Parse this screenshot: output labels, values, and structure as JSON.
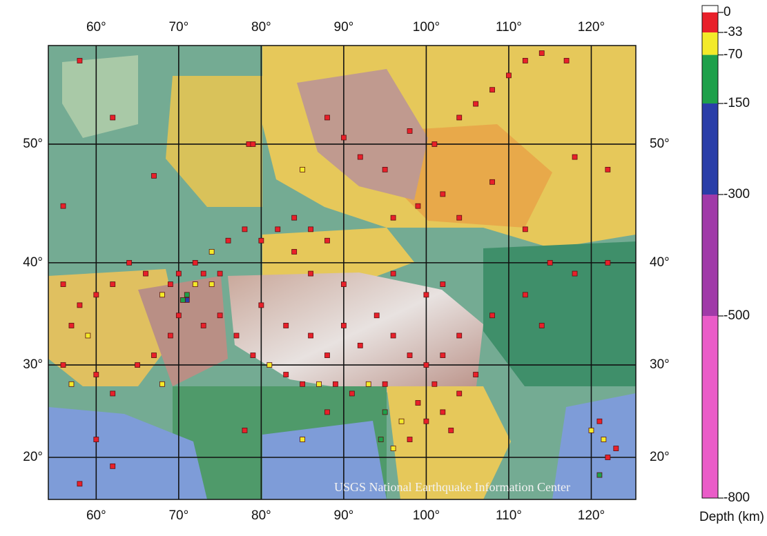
{
  "map_data": {
    "type": "scatter",
    "projection": "mercator",
    "xlim": [
      54.2,
      125.4
    ],
    "ylim": [
      15.2,
      57
    ],
    "xticks": [
      {
        "value": 60,
        "label": "60°"
      },
      {
        "value": 70,
        "label": "70°"
      },
      {
        "value": 80,
        "label": "80°"
      },
      {
        "value": 90,
        "label": "90°"
      },
      {
        "value": 100,
        "label": "100°"
      },
      {
        "value": 110,
        "label": "110°"
      },
      {
        "value": 120,
        "label": "120°"
      }
    ],
    "yticks": [
      {
        "value": 20,
        "label": "20°"
      },
      {
        "value": 30,
        "label": "30°"
      },
      {
        "value": 40,
        "label": "40°"
      },
      {
        "value": 50,
        "label": "50°"
      }
    ],
    "grid": true,
    "watermark": "USGS National Earthquake Information Center",
    "points": [
      [
        58,
        56,
        -10
      ],
      [
        78.5,
        50,
        -10
      ],
      [
        79,
        50,
        -10
      ],
      [
        67,
        47.5,
        -10
      ],
      [
        56,
        45,
        -10
      ],
      [
        62,
        52,
        -10
      ],
      [
        88,
        52,
        -10
      ],
      [
        90,
        50.5,
        -10
      ],
      [
        92,
        49,
        -10
      ],
      [
        95,
        48,
        -10
      ],
      [
        98,
        51,
        -10
      ],
      [
        101,
        50,
        -10
      ],
      [
        104,
        52,
        -10
      ],
      [
        106,
        53,
        -20
      ],
      [
        108,
        54,
        -10
      ],
      [
        110,
        55,
        -10
      ],
      [
        112,
        56,
        -10
      ],
      [
        114,
        56.5,
        -10
      ],
      [
        117,
        56,
        -10
      ],
      [
        102,
        46,
        -10
      ],
      [
        99,
        45,
        -10
      ],
      [
        96,
        44,
        -10
      ],
      [
        104,
        44,
        -10
      ],
      [
        108,
        47,
        -10
      ],
      [
        112,
        43,
        -10
      ],
      [
        118,
        49,
        -10
      ],
      [
        122,
        48,
        -10
      ],
      [
        85,
        48,
        -50
      ],
      [
        76,
        42,
        -10
      ],
      [
        78,
        43,
        -10
      ],
      [
        80,
        42,
        -10
      ],
      [
        82,
        43,
        -10
      ],
      [
        84,
        44,
        -10
      ],
      [
        86,
        43,
        -10
      ],
      [
        88,
        42,
        -10
      ],
      [
        74,
        41,
        -50
      ],
      [
        72,
        40,
        -10
      ],
      [
        70,
        39,
        -10
      ],
      [
        71,
        37,
        -100
      ],
      [
        71,
        36.5,
        -200
      ],
      [
        70.5,
        36.5,
        -100
      ],
      [
        72,
        38,
        -50
      ],
      [
        73,
        39,
        -10
      ],
      [
        74,
        38,
        -50
      ],
      [
        75,
        39,
        -10
      ],
      [
        69,
        38,
        -10
      ],
      [
        68,
        37,
        -50
      ],
      [
        66,
        39,
        -10
      ],
      [
        64,
        40,
        -10
      ],
      [
        62,
        38,
        -10
      ],
      [
        60,
        37,
        -10
      ],
      [
        58,
        36,
        -10
      ],
      [
        56,
        38,
        -10
      ],
      [
        57,
        34,
        -10
      ],
      [
        59,
        33,
        -50
      ],
      [
        56,
        30,
        -10
      ],
      [
        57,
        28,
        -50
      ],
      [
        60,
        29,
        -10
      ],
      [
        62,
        27,
        -10
      ],
      [
        65,
        30,
        -10
      ],
      [
        67,
        31,
        -10
      ],
      [
        68,
        28,
        -50
      ],
      [
        69,
        33,
        -10
      ],
      [
        70,
        35,
        -10
      ],
      [
        73,
        34,
        -10
      ],
      [
        75,
        35,
        -10
      ],
      [
        77,
        33,
        -10
      ],
      [
        79,
        31,
        -10
      ],
      [
        81,
        30,
        -50
      ],
      [
        83,
        29,
        -10
      ],
      [
        85,
        28,
        -10
      ],
      [
        87,
        28,
        -50
      ],
      [
        89,
        28,
        -10
      ],
      [
        91,
        27,
        -10
      ],
      [
        93,
        28,
        -50
      ],
      [
        95,
        28,
        -10
      ],
      [
        80,
        36,
        -10
      ],
      [
        83,
        34,
        -10
      ],
      [
        86,
        33,
        -10
      ],
      [
        88,
        31,
        -10
      ],
      [
        90,
        34,
        -10
      ],
      [
        92,
        32,
        -10
      ],
      [
        94,
        35,
        -10
      ],
      [
        96,
        33,
        -10
      ],
      [
        98,
        31,
        -10
      ],
      [
        100,
        30,
        -10
      ],
      [
        102,
        31,
        -10
      ],
      [
        101,
        28,
        -10
      ],
      [
        99,
        26,
        -10
      ],
      [
        97,
        24,
        -50
      ],
      [
        95,
        25,
        -100
      ],
      [
        94.5,
        22,
        -100
      ],
      [
        96,
        21,
        -50
      ],
      [
        98,
        22,
        -10
      ],
      [
        100,
        24,
        -10
      ],
      [
        102,
        25,
        -10
      ],
      [
        103,
        23,
        -10
      ],
      [
        104,
        27,
        -10
      ],
      [
        106,
        29,
        -10
      ],
      [
        104,
        33,
        -10
      ],
      [
        100,
        37,
        -10
      ],
      [
        102,
        38,
        -10
      ],
      [
        96,
        39,
        -10
      ],
      [
        90,
        38,
        -10
      ],
      [
        86,
        39,
        -10
      ],
      [
        84,
        41,
        -10
      ],
      [
        121,
        24,
        -10
      ],
      [
        121.5,
        22,
        -50
      ],
      [
        122,
        20,
        -10
      ],
      [
        121,
        18,
        -100
      ],
      [
        123,
        21,
        -10
      ],
      [
        120,
        23,
        -50
      ],
      [
        108,
        35,
        -10
      ],
      [
        112,
        37,
        -10
      ],
      [
        115,
        40,
        -10
      ],
      [
        118,
        39,
        -10
      ],
      [
        122,
        40,
        -10
      ],
      [
        114,
        34,
        -10
      ],
      [
        60,
        22,
        -10
      ],
      [
        62,
        19,
        -10
      ],
      [
        58,
        17,
        -10
      ],
      [
        85,
        22,
        -50
      ],
      [
        78,
        23,
        -10
      ],
      [
        88,
        25,
        -10
      ]
    ],
    "colorbar": {
      "title": "Depth (km)",
      "lim": [
        0,
        -800
      ],
      "ticks": [
        0,
        -33,
        -70,
        -150,
        -300,
        -500,
        -800
      ],
      "colors": [
        "#e8202a",
        "#f3ea2a",
        "#1ea04a",
        "#2a3ea8",
        "#a03aa8",
        "#ea5cc8"
      ]
    }
  }
}
